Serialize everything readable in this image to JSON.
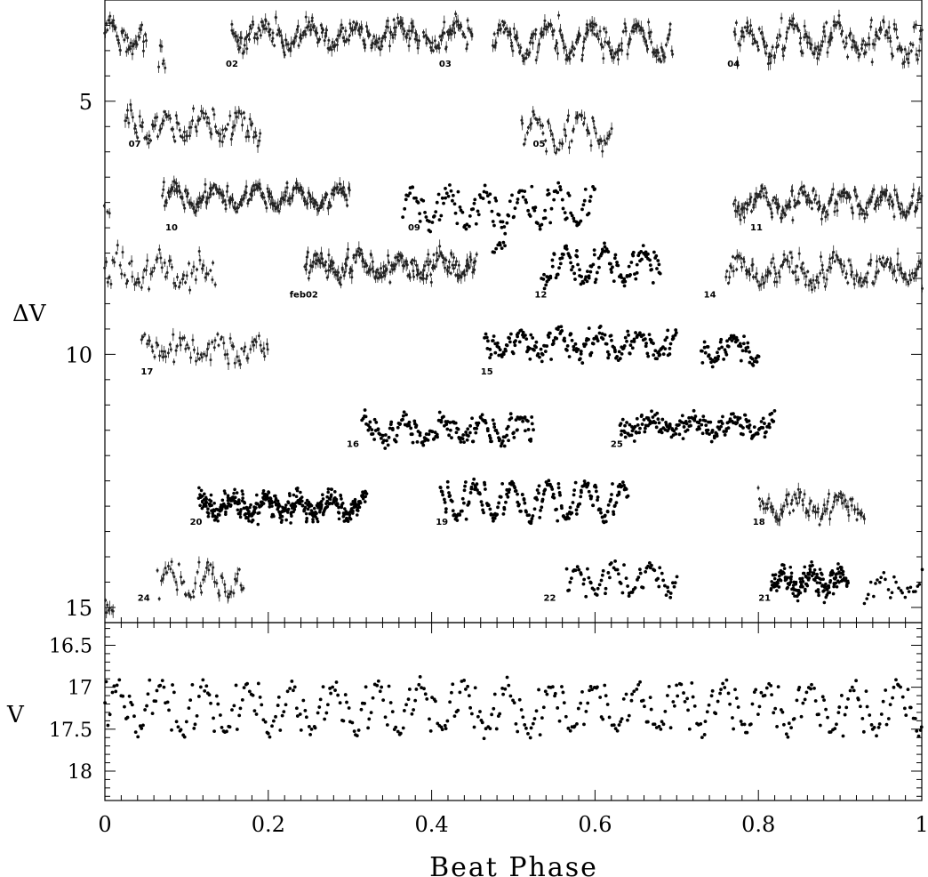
{
  "chart_data": [
    {
      "type": "scatter",
      "panel": "top",
      "ylabel": "ΔV",
      "xlim": [
        0,
        1
      ],
      "ylim": [
        15.3,
        3.0
      ],
      "y_inverted": true,
      "yticks": [
        5,
        10,
        15
      ],
      "ytick_labels": [
        "5",
        "10",
        "15"
      ],
      "annotations": [
        {
          "text": "02",
          "x": 0.148,
          "y": 4.32
        },
        {
          "text": "03",
          "x": 0.409,
          "y": 4.32
        },
        {
          "text": "04",
          "x": 0.762,
          "y": 4.32
        },
        {
          "text": "07",
          "x": 0.029,
          "y": 5.9
        },
        {
          "text": "05",
          "x": 0.524,
          "y": 5.9
        },
        {
          "text": "10",
          "x": 0.074,
          "y": 7.55
        },
        {
          "text": "09",
          "x": 0.371,
          "y": 7.55
        },
        {
          "text": "11",
          "x": 0.79,
          "y": 7.55
        },
        {
          "text": "feb02",
          "x": 0.226,
          "y": 8.88
        },
        {
          "text": "12",
          "x": 0.526,
          "y": 8.88
        },
        {
          "text": "14",
          "x": 0.733,
          "y": 8.88
        },
        {
          "text": "17",
          "x": 0.044,
          "y": 10.4
        },
        {
          "text": "15",
          "x": 0.46,
          "y": 10.4
        },
        {
          "text": "16",
          "x": 0.296,
          "y": 11.83
        },
        {
          "text": "25",
          "x": 0.619,
          "y": 11.83
        },
        {
          "text": "20",
          "x": 0.104,
          "y": 13.37
        },
        {
          "text": "19",
          "x": 0.405,
          "y": 13.37
        },
        {
          "text": "18",
          "x": 0.793,
          "y": 13.37
        },
        {
          "text": "24",
          "x": 0.04,
          "y": 14.87
        },
        {
          "text": "22",
          "x": 0.537,
          "y": 14.87
        },
        {
          "text": "21",
          "x": 0.8,
          "y": 14.87
        }
      ],
      "series": [
        {
          "label": "02",
          "style": "errorbars",
          "segments": [
            {
              "x0": 0.0,
              "x1": 0.05,
              "y": 3.7,
              "amp": 0.45,
              "period": 0.055,
              "noise": 0.2,
              "density": 900
            },
            {
              "x0": 0.066,
              "x1": 0.074,
              "y": 4.1,
              "amp": 0.3,
              "period": 0.055,
              "noise": 0.25,
              "density": 700
            },
            {
              "x0": 0.155,
              "x1": 0.385,
              "y": 3.7,
              "amp": 0.35,
              "period": 0.055,
              "noise": 0.2,
              "density": 900
            }
          ]
        },
        {
          "label": "03",
          "style": "errorbars",
          "segments": [
            {
              "x0": 0.39,
              "x1": 0.45,
              "y": 3.7,
              "amp": 0.35,
              "period": 0.055,
              "noise": 0.2,
              "density": 900
            },
            {
              "x0": 0.475,
              "x1": 0.695,
              "y": 3.8,
              "amp": 0.5,
              "period": 0.055,
              "noise": 0.2,
              "density": 900
            }
          ]
        },
        {
          "label": "04",
          "style": "errorbars",
          "segments": [
            {
              "x0": 0.77,
              "x1": 1.0,
              "y": 3.8,
              "amp": 0.45,
              "period": 0.055,
              "noise": 0.25,
              "density": 800
            }
          ]
        },
        {
          "label": "07",
          "style": "errorbars",
          "segments": [
            {
              "x0": 0.025,
              "x1": 0.19,
              "y": 5.5,
              "amp": 0.4,
              "period": 0.045,
              "noise": 0.2,
              "density": 650
            }
          ]
        },
        {
          "label": "05",
          "style": "errorbars",
          "segments": [
            {
              "x0": 0.51,
              "x1": 0.62,
              "y": 5.6,
              "amp": 0.5,
              "period": 0.055,
              "noise": 0.15,
              "density": 600
            }
          ]
        },
        {
          "label": "10",
          "style": "errorbars",
          "segments": [
            {
              "x0": 0.0,
              "x1": 0.005,
              "y": 7.05,
              "amp": 0.2,
              "period": 0.05,
              "noise": 0.2,
              "density": 600
            },
            {
              "x0": 0.07,
              "x1": 0.3,
              "y": 6.9,
              "amp": 0.32,
              "period": 0.05,
              "noise": 0.15,
              "density": 1000
            }
          ]
        },
        {
          "label": "09",
          "style": "dots",
          "segments": [
            {
              "x0": 0.365,
              "x1": 0.6,
              "y": 7.1,
              "amp": 0.55,
              "period": 0.045,
              "noise": 0.18,
              "density": 650
            }
          ]
        },
        {
          "label": "11",
          "style": "errorbars",
          "segments": [
            {
              "x0": 0.77,
              "x1": 1.0,
              "y": 7.0,
              "amp": 0.32,
              "period": 0.05,
              "noise": 0.18,
              "density": 900
            }
          ]
        },
        {
          "label": "feb02",
          "style": "errorbars",
          "segments": [
            {
              "x0": 0.0,
              "x1": 0.135,
              "y": 8.35,
              "amp": 0.4,
              "period": 0.05,
              "noise": 0.3,
              "density": 500
            },
            {
              "x0": 0.245,
              "x1": 0.455,
              "y": 8.25,
              "amp": 0.3,
              "period": 0.05,
              "noise": 0.22,
              "density": 1000
            }
          ]
        },
        {
          "label": "12",
          "style": "dots",
          "segments": [
            {
              "x0": 0.475,
              "x1": 0.49,
              "y": 7.9,
              "amp": 0.1,
              "period": 0.05,
              "noise": 0.08,
              "density": 600
            },
            {
              "x0": 0.535,
              "x1": 0.68,
              "y": 8.25,
              "amp": 0.5,
              "period": 0.048,
              "noise": 0.18,
              "density": 900
            }
          ]
        },
        {
          "label": "14",
          "style": "errorbars",
          "segments": [
            {
              "x0": 0.76,
              "x1": 1.0,
              "y": 8.35,
              "amp": 0.35,
              "period": 0.06,
              "noise": 0.25,
              "density": 700
            }
          ]
        },
        {
          "label": "17",
          "style": "errorbars",
          "segments": [
            {
              "x0": 0.045,
              "x1": 0.2,
              "y": 9.9,
              "amp": 0.3,
              "period": 0.045,
              "noise": 0.2,
              "density": 500
            }
          ]
        },
        {
          "label": "15",
          "style": "dots",
          "segments": [
            {
              "x0": 0.465,
              "x1": 0.7,
              "y": 9.8,
              "amp": 0.35,
              "period": 0.048,
              "noise": 0.18,
              "density": 900
            },
            {
              "x0": 0.73,
              "x1": 0.8,
              "y": 9.9,
              "amp": 0.35,
              "period": 0.05,
              "noise": 0.2,
              "density": 900
            }
          ]
        },
        {
          "label": "16",
          "style": "dots",
          "segments": [
            {
              "x0": 0.315,
              "x1": 0.525,
              "y": 11.5,
              "amp": 0.35,
              "period": 0.048,
              "noise": 0.2,
              "density": 900
            }
          ]
        },
        {
          "label": "25",
          "style": "dots",
          "segments": [
            {
              "x0": 0.63,
              "x1": 0.82,
              "y": 11.4,
              "amp": 0.25,
              "period": 0.05,
              "noise": 0.2,
              "density": 1000
            }
          ]
        },
        {
          "label": "20",
          "style": "dense",
          "segments": [
            {
              "x0": 0.115,
              "x1": 0.32,
              "y": 13.0,
              "amp": 0.3,
              "period": 0.04,
              "noise": 0.22,
              "density": 2000
            }
          ]
        },
        {
          "label": "19",
          "style": "dots",
          "segments": [
            {
              "x0": 0.41,
              "x1": 0.64,
              "y": 12.9,
              "amp": 0.55,
              "period": 0.045,
              "noise": 0.15,
              "density": 1000
            }
          ]
        },
        {
          "label": "18",
          "style": "errorbars",
          "segments": [
            {
              "x0": 0.8,
              "x1": 0.93,
              "y": 13.0,
              "amp": 0.3,
              "period": 0.05,
              "noise": 0.2,
              "density": 700
            }
          ]
        },
        {
          "label": "24",
          "style": "errorbars",
          "segments": [
            {
              "x0": 0.0,
              "x1": 0.01,
              "y": 14.95,
              "amp": 0.2,
              "period": 0.05,
              "noise": 0.2,
              "density": 700
            },
            {
              "x0": 0.065,
              "x1": 0.17,
              "y": 14.5,
              "amp": 0.45,
              "period": 0.05,
              "noise": 0.18,
              "density": 550
            }
          ]
        },
        {
          "label": "22",
          "style": "dots",
          "segments": [
            {
              "x0": 0.565,
              "x1": 0.7,
              "y": 14.45,
              "amp": 0.4,
              "period": 0.045,
              "noise": 0.15,
              "density": 600
            }
          ]
        },
        {
          "label": "21",
          "style": "dense",
          "segments": [
            {
              "x0": 0.815,
              "x1": 0.91,
              "y": 14.5,
              "amp": 0.25,
              "period": 0.035,
              "noise": 0.25,
              "density": 2000
            },
            {
              "x0": 0.93,
              "x1": 1.0,
              "y": 14.6,
              "amp": 0.35,
              "period": 0.05,
              "noise": 0.25,
              "density": 400
            }
          ]
        }
      ]
    },
    {
      "type": "scatter",
      "panel": "bottom",
      "xlabel": "Beat Phase",
      "ylabel": "V",
      "xlim": [
        0,
        1
      ],
      "ylim": [
        18.35,
        16.23
      ],
      "y_inverted": true,
      "xticks": [
        0,
        0.2,
        0.4,
        0.6,
        0.8,
        1
      ],
      "xtick_labels": [
        "0",
        "0.2",
        "0.4",
        "0.6",
        "0.8",
        "1"
      ],
      "yticks": [
        16.5,
        17,
        17.5,
        18
      ],
      "ytick_labels": [
        "16.5",
        "17",
        "17.5",
        "18"
      ],
      "series": [
        {
          "label": "V",
          "style": "dots",
          "segments": [
            {
              "x0": 0.0,
              "x1": 1.0,
              "y": 17.25,
              "amp": 0.45,
              "period": 0.053,
              "noise": 0.12,
              "density": 470
            }
          ]
        }
      ]
    }
  ]
}
